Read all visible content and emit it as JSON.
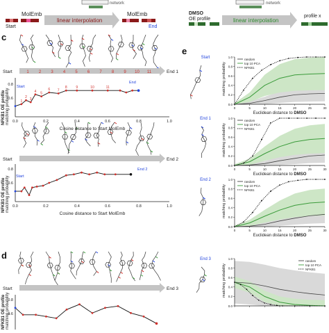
{
  "header": {
    "left": {
      "network_label": "network",
      "molemb_left": "MolEmb",
      "start": "Start",
      "interp": "linear interpolation",
      "molemb_right": "MolEmb",
      "end": "End"
    },
    "right": {
      "network_label": "network",
      "dmso": "DMSO",
      "oe_profile": "OE profile",
      "interp": "linear interpolation",
      "profile_x": "profile x"
    }
  },
  "panel_c": {
    "letter": "c",
    "strip1": {
      "start": "Start",
      "end": "End 1",
      "numbers": [
        "1",
        "2",
        "3",
        "4",
        "5",
        "6",
        "7",
        "8",
        "9",
        "10",
        "11"
      ]
    },
    "strip2": {
      "start": "Start",
      "end": "End 2"
    },
    "ylabel_bold": "NFKB1 OE profile",
    "ylabel": "matching probability",
    "xlabel": "Cosine distance to Start MolEmb",
    "plot1": {
      "start": "Start",
      "end": "End",
      "yticks": [
        "0.8",
        "0.6"
      ],
      "xticks": [
        "0.0",
        "0.2",
        "0.4",
        "0.6",
        "0.8",
        "1.0"
      ],
      "labels": [
        "1",
        "2",
        "3",
        "4",
        "5",
        "6",
        "7",
        "8",
        "9",
        "10",
        "11"
      ]
    },
    "plot2": {
      "start": "Start",
      "end": "End 2",
      "yticks": [
        "0.8",
        "0.6"
      ],
      "xticks": [
        "0.0",
        "0.2",
        "0.4",
        "0.6",
        "0.8",
        "1.0"
      ]
    }
  },
  "panel_d": {
    "letter": "d",
    "strip": {
      "start": "Start",
      "end": "End 3"
    },
    "ylabel_bold": "NFKB1 OE profile",
    "ylabel": "matching probability",
    "yticks": [
      "0.8",
      "0.6"
    ]
  },
  "panel_e": {
    "letter": "e",
    "ylabel": "matching probability",
    "xlabel_prefix": "Euclidean distance to ",
    "xlabel_bold": "DMSO",
    "xticks": [
      "0",
      "5",
      "10",
      "15",
      "20",
      "25",
      "30"
    ],
    "yticks": [
      "0.0",
      "0.2",
      "0.4",
      "0.6",
      "0.8",
      "1.0"
    ],
    "legend": [
      "random",
      "top 10 PCA",
      "NFKB1"
    ],
    "subplots": [
      {
        "tag": "Start"
      },
      {
        "tag": "End 1"
      },
      {
        "tag": "End 2"
      },
      {
        "tag": "End 3"
      }
    ]
  },
  "colors": {
    "red": "#d0302b",
    "green": "#3a9b3a",
    "green_fill": "#cde6c6",
    "gray_fill": "#d9d9d9",
    "arrow": "#c4c4c4",
    "blue": "#2244dd"
  },
  "chart_data": [
    {
      "type": "line",
      "title": "",
      "xlabel": "Cosine distance to Start MolEmb",
      "ylabel": "matching probability",
      "xlim": [
        0,
        1.0
      ],
      "ylim": [
        0.55,
        0.95
      ],
      "series": [
        {
          "values": [
            [
              0.0,
              0.66
            ],
            [
              0.04,
              0.68
            ],
            [
              0.07,
              0.72
            ],
            [
              0.1,
              0.7
            ],
            [
              0.13,
              0.78
            ],
            [
              0.17,
              0.76
            ],
            [
              0.22,
              0.8
            ],
            [
              0.28,
              0.79
            ],
            [
              0.33,
              0.82
            ],
            [
              0.4,
              0.82
            ],
            [
              0.5,
              0.82
            ],
            [
              0.6,
              0.82
            ],
            [
              0.68,
              0.82
            ],
            [
              0.72,
              0.8
            ],
            [
              0.76,
              0.82
            ],
            [
              0.8,
              0.82
            ]
          ]
        }
      ]
    },
    {
      "type": "line",
      "title": "",
      "xlabel": "Cosine distance to Start MolEmb",
      "ylabel": "matching probability",
      "xlim": [
        0,
        1.0
      ],
      "ylim": [
        0.55,
        0.95
      ],
      "series": [
        {
          "values": [
            [
              0.0,
              0.66
            ],
            [
              0.04,
              0.66
            ],
            [
              0.06,
              0.7
            ],
            [
              0.09,
              0.62
            ],
            [
              0.11,
              0.7
            ],
            [
              0.14,
              0.71
            ],
            [
              0.18,
              0.72
            ],
            [
              0.22,
              0.75
            ],
            [
              0.27,
              0.78
            ],
            [
              0.33,
              0.83
            ],
            [
              0.38,
              0.84
            ],
            [
              0.43,
              0.86
            ],
            [
              0.48,
              0.84
            ],
            [
              0.53,
              0.86
            ],
            [
              0.58,
              0.84
            ],
            [
              0.65,
              0.84
            ],
            [
              0.75,
              0.84
            ]
          ]
        }
      ]
    },
    {
      "type": "line",
      "title": "",
      "ylabel": "matching probability",
      "ylim": [
        0.55,
        0.95
      ],
      "series": [
        {
          "values": [
            [
              0.0,
              0.8
            ],
            [
              0.03,
              0.72
            ],
            [
              0.08,
              0.72
            ],
            [
              0.12,
              0.7
            ],
            [
              0.16,
              0.68
            ],
            [
              0.2,
              0.78
            ],
            [
              0.25,
              0.84
            ],
            [
              0.3,
              0.74
            ],
            [
              0.35,
              0.8
            ],
            [
              0.4,
              0.82
            ],
            [
              0.45,
              0.74
            ],
            [
              0.5,
              0.7
            ],
            [
              0.55,
              0.62
            ]
          ]
        }
      ]
    },
    {
      "type": "line",
      "title": "",
      "xlabel": "Euclidean distance to DMSO",
      "ylabel": "matching probability",
      "xlim": [
        0,
        30
      ],
      "ylim": [
        0,
        1.0
      ],
      "series": [
        {
          "name": "random",
          "x": [
            0,
            5,
            10,
            15,
            20,
            25,
            30
          ],
          "values": [
            0.0,
            0.02,
            0.08,
            0.15,
            0.2,
            0.22,
            0.23
          ]
        },
        {
          "name": "top 10 PCA",
          "x": [
            0,
            5,
            10,
            15,
            20,
            25,
            30
          ],
          "values": [
            0.0,
            0.15,
            0.4,
            0.55,
            0.62,
            0.64,
            0.65
          ]
        },
        {
          "name": "NFKB1",
          "x": [
            0,
            3,
            6,
            9,
            12,
            15,
            18,
            21,
            24,
            27,
            30
          ],
          "values": [
            0.0,
            0.3,
            0.55,
            0.72,
            0.84,
            0.92,
            0.97,
            0.99,
            1.0,
            1.0,
            1.0
          ]
        }
      ]
    },
    {
      "type": "line",
      "title": "",
      "xlabel": "Euclidean distance to DMSO",
      "ylabel": "matching probability",
      "xlim": [
        0,
        30
      ],
      "ylim": [
        0,
        1.0
      ],
      "series": [
        {
          "name": "random",
          "x": [
            0,
            5,
            10,
            15,
            20,
            25,
            30
          ],
          "values": [
            0.0,
            0.01,
            0.04,
            0.1,
            0.15,
            0.2,
            0.22
          ]
        },
        {
          "name": "top 10 PCA",
          "x": [
            0,
            5,
            10,
            15,
            20,
            25,
            30
          ],
          "values": [
            0.0,
            0.08,
            0.25,
            0.4,
            0.5,
            0.55,
            0.57
          ]
        },
        {
          "name": "NFKB1",
          "x": [
            0,
            3,
            6,
            9,
            12,
            15,
            18,
            21,
            24,
            27,
            30
          ],
          "values": [
            0.0,
            0.05,
            0.2,
            0.55,
            0.9,
            1.0,
            1.0,
            1.0,
            1.0,
            1.0,
            1.0
          ]
        }
      ]
    },
    {
      "type": "line",
      "title": "",
      "xlabel": "Euclidean distance to DMSO",
      "ylabel": "matching probability",
      "xlim": [
        0,
        30
      ],
      "ylim": [
        0,
        1.0
      ],
      "series": [
        {
          "name": "random",
          "x": [
            0,
            5,
            10,
            15,
            20,
            25,
            30
          ],
          "values": [
            0.0,
            0.01,
            0.05,
            0.12,
            0.18,
            0.23,
            0.26
          ]
        },
        {
          "name": "top 10 PCA",
          "x": [
            0,
            5,
            10,
            15,
            20,
            25,
            30
          ],
          "values": [
            0.0,
            0.08,
            0.22,
            0.35,
            0.45,
            0.5,
            0.52
          ]
        },
        {
          "name": "NFKB1",
          "x": [
            0,
            3,
            6,
            9,
            12,
            15,
            18,
            21,
            24,
            27,
            30
          ],
          "values": [
            0.0,
            0.1,
            0.3,
            0.55,
            0.75,
            0.88,
            0.95,
            0.98,
            1.0,
            1.0,
            1.0
          ]
        }
      ]
    },
    {
      "type": "line",
      "title": "",
      "xlabel": "Euclidean distance to DMSO",
      "ylabel": "matching probability",
      "xlim": [
        0,
        30
      ],
      "ylim": [
        0,
        1.0
      ],
      "series": [
        {
          "name": "random",
          "x": [
            0,
            5,
            10,
            15,
            20,
            25,
            30
          ],
          "values": [
            0.5,
            0.48,
            0.42,
            0.35,
            0.3,
            0.26,
            0.23
          ]
        },
        {
          "name": "top 10 PCA",
          "x": [
            0,
            5,
            10,
            15,
            20,
            25,
            30
          ],
          "values": [
            0.5,
            0.4,
            0.2,
            0.08,
            0.03,
            0.01,
            0.0
          ]
        },
        {
          "name": "NFKB1",
          "x": [
            0,
            2,
            4,
            6,
            8,
            10,
            12,
            14,
            16,
            20,
            25,
            30
          ],
          "values": [
            0.5,
            0.45,
            0.35,
            0.22,
            0.12,
            0.06,
            0.03,
            0.01,
            0.0,
            0.0,
            0.0,
            0.0
          ]
        }
      ]
    }
  ]
}
